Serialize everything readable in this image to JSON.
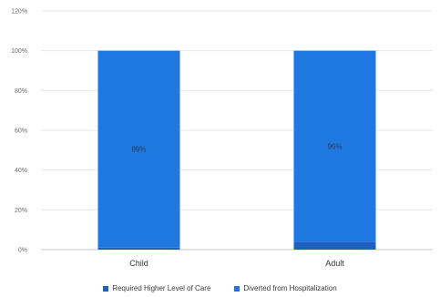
{
  "chart_data": {
    "type": "bar",
    "stacked": true,
    "categories": [
      "Child",
      "Adult"
    ],
    "series": [
      {
        "name": "Required Higher Level of Care",
        "values": [
          1,
          4
        ],
        "labels": [
          "1%",
          "4%"
        ],
        "color": "#1f5fbf"
      },
      {
        "name": "Diverted from Hospitalization",
        "values": [
          99,
          96
        ],
        "labels": [
          "99%",
          "96%"
        ],
        "color": "#1f78e0"
      }
    ],
    "yticks": [
      "0%",
      "20%",
      "40%",
      "60%",
      "80%",
      "100%",
      "120%"
    ],
    "ylim": [
      0,
      120
    ],
    "grid": true,
    "legend_position": "bottom"
  }
}
